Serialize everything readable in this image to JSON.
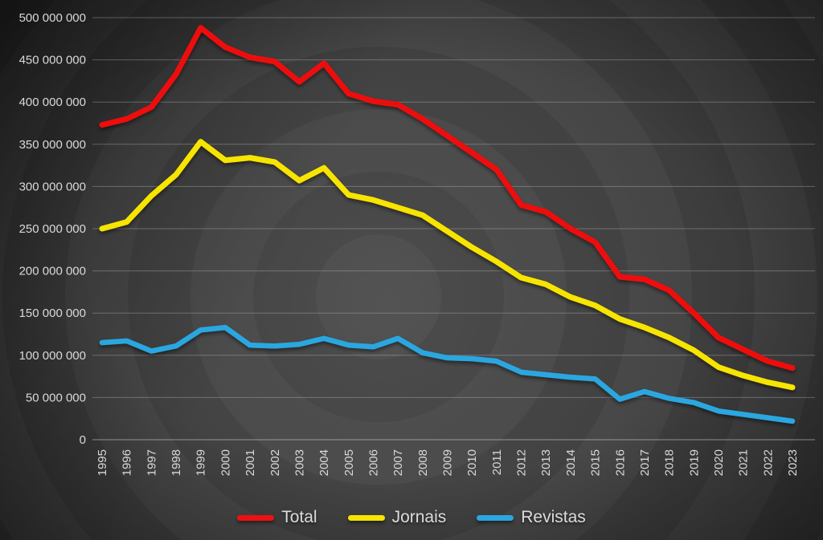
{
  "chart_data": {
    "type": "line",
    "title": "",
    "x": [
      1995,
      1996,
      1997,
      1998,
      1999,
      2000,
      2001,
      2002,
      2003,
      2004,
      2005,
      2006,
      2007,
      2008,
      2009,
      2010,
      2011,
      2012,
      2013,
      2014,
      2015,
      2016,
      2017,
      2018,
      2019,
      2020,
      2021,
      2022,
      2023
    ],
    "series": [
      {
        "name": "Total",
        "color": "#ee1111",
        "stroke_width": 7,
        "values": [
          373000000,
          380000000,
          394000000,
          433000000,
          488000000,
          465000000,
          453000000,
          448000000,
          424000000,
          446000000,
          410000000,
          401000000,
          397000000,
          380000000,
          360000000,
          340000000,
          320000000,
          278000000,
          270000000,
          250000000,
          234000000,
          193000000,
          190000000,
          177000000,
          150000000,
          121000000,
          107000000,
          93000000,
          85000000
        ]
      },
      {
        "name": "Jornais",
        "color": "#f7e400",
        "stroke_width": 7,
        "values": [
          250000000,
          258000000,
          289000000,
          314000000,
          353000000,
          331000000,
          334000000,
          329000000,
          307000000,
          322000000,
          290000000,
          284000000,
          275000000,
          266000000,
          247000000,
          228000000,
          211000000,
          192000000,
          184000000,
          169000000,
          159000000,
          143000000,
          133000000,
          121000000,
          106000000,
          86000000,
          76000000,
          68000000,
          62000000
        ]
      },
      {
        "name": "Revistas",
        "color": "#2aa7e0",
        "stroke_width": 6.5,
        "values": [
          115000000,
          117000000,
          105000000,
          111000000,
          130000000,
          133000000,
          112000000,
          111000000,
          113000000,
          120000000,
          112000000,
          110000000,
          120000000,
          103000000,
          97000000,
          96000000,
          93000000,
          80000000,
          77000000,
          74000000,
          72000000,
          48000000,
          57000000,
          49000000,
          44000000,
          34000000,
          30000000,
          26000000,
          22000000
        ]
      }
    ],
    "ylim": [
      0,
      500000000
    ],
    "y_tick_labels": [
      "0",
      "50 000 000",
      "100 000 000",
      "150 000 000",
      "200 000 000",
      "250 000 000",
      "300 000 000",
      "350 000 000",
      "400 000 000",
      "450 000 000",
      "500 000 000"
    ],
    "xlabel": "",
    "ylabel": "",
    "grid": "horizontal",
    "x_label_rotation": -90,
    "legend_position": "bottom"
  },
  "style": {
    "axis_label_color": "#d9d9d9",
    "gridline_color": "rgba(216,216,216,0.32)",
    "baseline_color": "rgba(216,216,216,0.55)",
    "background_color": "#3f3f3f"
  },
  "legend": {
    "items": [
      {
        "label": "Total"
      },
      {
        "label": "Jornais"
      },
      {
        "label": "Revistas"
      }
    ]
  }
}
